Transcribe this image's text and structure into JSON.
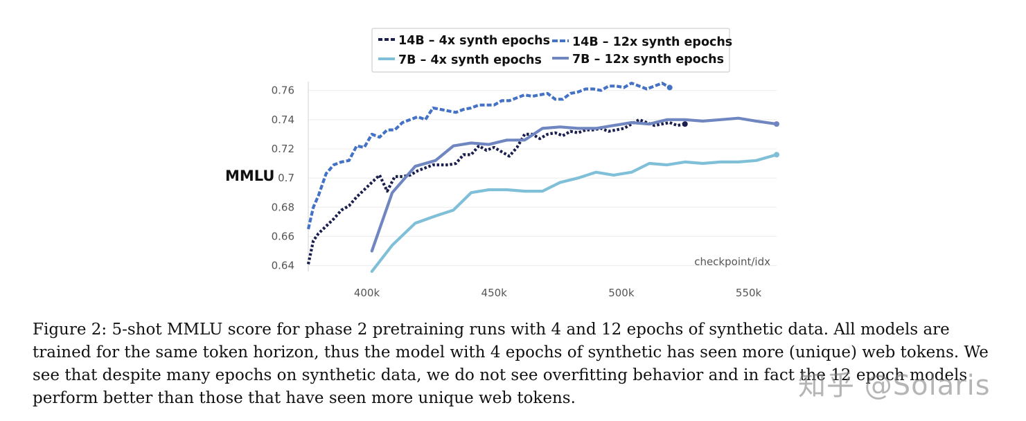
{
  "chart_data": {
    "type": "line",
    "ylabel": "MMLU",
    "xlabel": "checkpoint/idx",
    "xlim": [
      377000,
      561000
    ],
    "ylim": [
      0.636,
      0.766
    ],
    "yticks": [
      0.64,
      0.66,
      0.68,
      0.7,
      0.72,
      0.74,
      0.76
    ],
    "ytick_labels": [
      "0.64",
      "0.66",
      "0.68",
      "0.7",
      "0.72",
      "0.74",
      "0.76"
    ],
    "xticks": [
      400000,
      450000,
      500000,
      550000
    ],
    "xtick_labels": [
      "400k",
      "450k",
      "500k",
      "550k"
    ],
    "grid": true,
    "legend_position": "top-center",
    "series": [
      {
        "name": "14B – 4x synth epochs",
        "color": "#1a1f4e",
        "style": "dotted",
        "x": [
          377000,
          379000,
          381000,
          384000,
          387000,
          390000,
          393000,
          396000,
          399000,
          402000,
          405000,
          408000,
          411000,
          414000,
          417000,
          420000,
          423000,
          426000,
          429000,
          432000,
          435000,
          438000,
          441000,
          444000,
          447000,
          450000,
          453000,
          456000,
          459000,
          462000,
          465000,
          468000,
          471000,
          474000,
          477000,
          480000,
          483000,
          486000,
          489000,
          492000,
          495000,
          498000,
          501000,
          504000,
          507000,
          510000,
          513000,
          516000,
          519000,
          522000,
          525000
        ],
        "y": [
          0.641,
          0.657,
          0.662,
          0.667,
          0.672,
          0.678,
          0.681,
          0.687,
          0.692,
          0.697,
          0.702,
          0.691,
          0.701,
          0.701,
          0.702,
          0.705,
          0.707,
          0.709,
          0.709,
          0.709,
          0.71,
          0.716,
          0.716,
          0.722,
          0.719,
          0.721,
          0.718,
          0.715,
          0.721,
          0.73,
          0.73,
          0.727,
          0.73,
          0.731,
          0.729,
          0.732,
          0.731,
          0.733,
          0.733,
          0.734,
          0.732,
          0.733,
          0.734,
          0.737,
          0.74,
          0.738,
          0.736,
          0.737,
          0.738,
          0.736,
          0.737
        ]
      },
      {
        "name": "14B – 12x synth epochs",
        "color": "#4472c4",
        "style": "dashed",
        "x": [
          377000,
          379000,
          381000,
          384000,
          387000,
          390000,
          393000,
          396000,
          399000,
          402000,
          405000,
          408000,
          411000,
          414000,
          417000,
          420000,
          423000,
          426000,
          429000,
          432000,
          435000,
          438000,
          441000,
          444000,
          447000,
          450000,
          453000,
          456000,
          459000,
          462000,
          465000,
          468000,
          471000,
          474000,
          477000,
          480000,
          483000,
          486000,
          489000,
          492000,
          495000,
          498000,
          501000,
          504000,
          507000,
          510000,
          513000,
          516000,
          519000
        ],
        "y": [
          0.665,
          0.68,
          0.688,
          0.703,
          0.709,
          0.711,
          0.712,
          0.722,
          0.721,
          0.73,
          0.728,
          0.733,
          0.733,
          0.738,
          0.74,
          0.742,
          0.74,
          0.748,
          0.747,
          0.746,
          0.745,
          0.747,
          0.748,
          0.75,
          0.75,
          0.75,
          0.753,
          0.753,
          0.755,
          0.757,
          0.756,
          0.757,
          0.758,
          0.754,
          0.754,
          0.758,
          0.759,
          0.761,
          0.761,
          0.76,
          0.763,
          0.763,
          0.762,
          0.765,
          0.763,
          0.761,
          0.763,
          0.765,
          0.762
        ]
      },
      {
        "name": "7B – 4x synth epochs",
        "color": "#7fbfd8",
        "style": "solid",
        "x": [
          402000,
          410000,
          419000,
          427000,
          434000,
          441000,
          448000,
          455000,
          462000,
          469000,
          476000,
          483000,
          490000,
          497000,
          504000,
          511000,
          518000,
          525000,
          532000,
          539000,
          546000,
          553000,
          561000
        ],
        "y": [
          0.636,
          0.654,
          0.669,
          0.674,
          0.678,
          0.69,
          0.692,
          0.692,
          0.691,
          0.691,
          0.697,
          0.7,
          0.704,
          0.702,
          0.704,
          0.71,
          0.709,
          0.711,
          0.71,
          0.711,
          0.711,
          0.712,
          0.716
        ]
      },
      {
        "name": "7B – 12x synth epochs",
        "color": "#6f86c0",
        "style": "solid",
        "x": [
          402000,
          410000,
          419000,
          427000,
          434000,
          441000,
          448000,
          455000,
          462000,
          469000,
          476000,
          483000,
          490000,
          497000,
          504000,
          511000,
          518000,
          525000,
          532000,
          539000,
          546000,
          553000,
          561000
        ],
        "y": [
          0.65,
          0.69,
          0.708,
          0.712,
          0.722,
          0.724,
          0.723,
          0.726,
          0.726,
          0.734,
          0.735,
          0.734,
          0.734,
          0.736,
          0.738,
          0.737,
          0.74,
          0.74,
          0.739,
          0.74,
          0.741,
          0.739,
          0.737
        ]
      }
    ]
  },
  "caption": "Figure 2: 5-shot MMLU score for phase 2 pretraining runs with 4 and 12 epochs of synthetic data. All models are trained for the same token horizon, thus the model with 4 epochs of synthetic has seen more (unique) web tokens. We see that despite many epochs on synthetic data, we do not see overfitting behavior and in fact the 12 epoch models perform better than those that have seen more unique web tokens.",
  "watermark": "知乎 @Solaris"
}
